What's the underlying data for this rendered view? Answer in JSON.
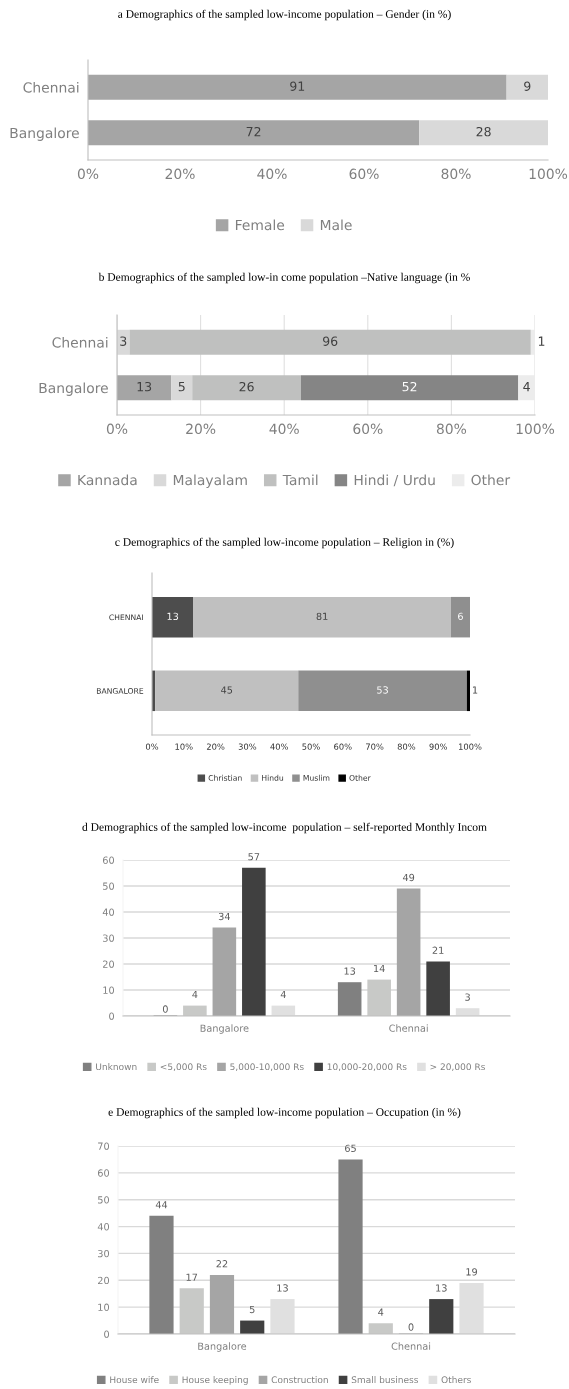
{
  "chart_data": [
    {
      "type": "bar",
      "orientation": "horizontal",
      "stacked": true,
      "title": "a Demographics of the sampled low-income population – Gender (in %)",
      "categories": [
        "Chennai",
        "Bangalore"
      ],
      "series": [
        {
          "name": "Female",
          "color": "#a5a5a5",
          "values": [
            91,
            72
          ]
        },
        {
          "name": "Male",
          "color": "#d9d9d9",
          "values": [
            9,
            28
          ]
        }
      ],
      "xlim": [
        0,
        100
      ],
      "xticks": [
        {
          "value": 0,
          "label": "0%"
        },
        {
          "value": 20,
          "label": "20%"
        },
        {
          "value": 40,
          "label": "40%"
        },
        {
          "value": 60,
          "label": "60%"
        },
        {
          "value": 80,
          "label": "80%"
        },
        {
          "value": 100,
          "label": "100%"
        }
      ],
      "data_labels": true,
      "legend": "bottom"
    },
    {
      "type": "bar",
      "orientation": "horizontal",
      "stacked": true,
      "title": "b Demographics of the sampled low-in come population –Native language (in %",
      "categories": [
        "Chennai",
        "Bangalore"
      ],
      "series": [
        {
          "name": "Kannada",
          "color": "#a5a5a5",
          "values": [
            0,
            13
          ],
          "value_labels": [
            null,
            "13"
          ]
        },
        {
          "name": "Malayalam",
          "color": "#d9d9d9",
          "values": [
            3,
            5
          ],
          "value_labels": [
            "3",
            "5"
          ]
        },
        {
          "name": "Tamil",
          "color": "#bfc0bf",
          "values": [
            96,
            26
          ],
          "value_labels": [
            "96",
            "26"
          ]
        },
        {
          "name": "Hindi / Urdu",
          "color": "#858585",
          "values": [
            0,
            52
          ],
          "value_labels": [
            null,
            "52"
          ]
        },
        {
          "name": "Other",
          "color": "#ececec",
          "values": [
            1,
            4
          ],
          "value_labels": [
            "1",
            "4"
          ]
        }
      ],
      "xlim": [
        0,
        100
      ],
      "xticks": [
        {
          "value": 0,
          "label": "0%"
        },
        {
          "value": 20,
          "label": "20%"
        },
        {
          "value": 40,
          "label": "40%"
        },
        {
          "value": 60,
          "label": "60%"
        },
        {
          "value": 80,
          "label": "80%"
        },
        {
          "value": 100,
          "label": "100%"
        }
      ],
      "legend": "bottom",
      "grid": "x"
    },
    {
      "type": "bar",
      "orientation": "horizontal",
      "stacked": true,
      "title": "c Demographics of the sampled low-income population – Religion in (%)",
      "categories": [
        "CHENNAI",
        "BANGALORE"
      ],
      "series": [
        {
          "name": "Christian",
          "color": "#4d4d4d",
          "values": [
            13,
            1
          ],
          "value_labels": [
            "13",
            null
          ]
        },
        {
          "name": "Hindu",
          "color": "#c0c0c0",
          "values": [
            81,
            45
          ],
          "value_labels": [
            "81",
            "45"
          ]
        },
        {
          "name": "Muslim",
          "color": "#8f8f8f",
          "values": [
            6,
            53
          ],
          "value_labels": [
            "6",
            "53"
          ]
        },
        {
          "name": "Other",
          "color": "#000000",
          "values": [
            0,
            1
          ],
          "value_labels": [
            null,
            "1"
          ]
        }
      ],
      "xlim": [
        0,
        100
      ],
      "xticks": [
        {
          "value": 0,
          "label": "0%"
        },
        {
          "value": 10,
          "label": "10%"
        },
        {
          "value": 20,
          "label": "20%"
        },
        {
          "value": 30,
          "label": "30%"
        },
        {
          "value": 40,
          "label": "40%"
        },
        {
          "value": 50,
          "label": "50%"
        },
        {
          "value": 60,
          "label": "60%"
        },
        {
          "value": 70,
          "label": "70%"
        },
        {
          "value": 80,
          "label": "80%"
        },
        {
          "value": 90,
          "label": "90%"
        },
        {
          "value": 100,
          "label": "100%"
        }
      ],
      "legend": "bottom"
    },
    {
      "type": "bar",
      "title": "d Demographics of the sampled low-income  population – self-reported Monthly Incom",
      "categories": [
        "Bangalore",
        "Chennai"
      ],
      "series": [
        {
          "name": "Unknown",
          "color": "#808080",
          "values": [
            0,
            13
          ],
          "value_labels": [
            "0",
            "13"
          ]
        },
        {
          "name": "<5,000 Rs",
          "color": "#c8c9c7",
          "values": [
            4,
            14
          ],
          "value_labels": [
            "4",
            "14"
          ]
        },
        {
          "name": "5,000-10,000 Rs",
          "color": "#a5a5a5",
          "values": [
            34,
            49
          ],
          "value_labels": [
            "34",
            "49"
          ]
        },
        {
          "name": "10,000-20,000 Rs",
          "color": "#404040",
          "values": [
            57,
            21
          ],
          "value_labels": [
            "57",
            "21"
          ]
        },
        {
          "name": "> 20,000 Rs",
          "color": "#e0e0e0",
          "values": [
            4,
            3
          ],
          "value_labels": [
            "4",
            "3"
          ]
        }
      ],
      "ylim": [
        0,
        60
      ],
      "yticks": [
        0,
        10,
        20,
        30,
        40,
        50,
        60
      ],
      "legend": "bottom",
      "grid": "y"
    },
    {
      "type": "bar",
      "title": "e Demographics of the sampled low-income population – Occupation (in %)",
      "categories": [
        "Bangalore",
        "Chennai"
      ],
      "series": [
        {
          "name": "House wife",
          "color": "#808080",
          "values": [
            44,
            65
          ]
        },
        {
          "name": "House keeping",
          "color": "#c8c9c7",
          "values": [
            17,
            4
          ]
        },
        {
          "name": "Construction",
          "color": "#a5a5a5",
          "values": [
            22,
            0
          ]
        },
        {
          "name": "Small business",
          "color": "#404040",
          "values": [
            5,
            13
          ]
        },
        {
          "name": "Others",
          "color": "#e0e0e0",
          "values": [
            13,
            19
          ]
        }
      ],
      "ylim": [
        0,
        70
      ],
      "yticks": [
        0,
        10,
        20,
        30,
        40,
        50,
        60,
        70
      ],
      "data_labels": true,
      "legend": "bottom",
      "grid": "y"
    }
  ]
}
